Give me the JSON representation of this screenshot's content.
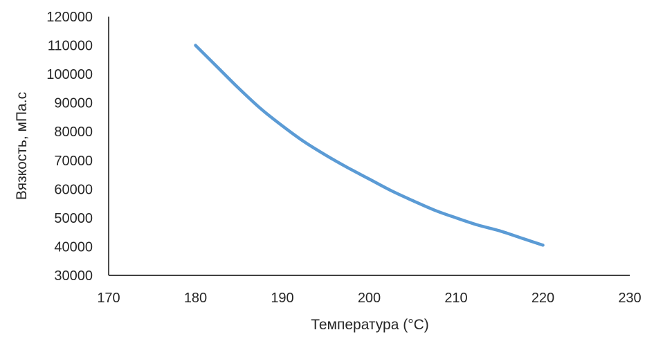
{
  "chart_data": {
    "type": "line",
    "title": "",
    "xlabel": "Температура (°C)",
    "ylabel": "Вязкость, мПа.с",
    "xlim": [
      170,
      230
    ],
    "ylim": [
      30000,
      120000
    ],
    "x_ticks": [
      170,
      180,
      190,
      200,
      210,
      220,
      230
    ],
    "y_ticks": [
      30000,
      40000,
      50000,
      60000,
      70000,
      80000,
      90000,
      100000,
      110000,
      120000
    ],
    "grid": false,
    "legend": "none",
    "series": [
      {
        "color": "#5B9BD5",
        "x": [
          180,
          182.5,
          185,
          187.5,
          190,
          192.5,
          195,
          197.5,
          200,
          202.5,
          205,
          207.5,
          210,
          212.5,
          215,
          217.5,
          220
        ],
        "y": [
          110000,
          102500,
          95000,
          88000,
          82000,
          76500,
          71800,
          67500,
          63500,
          59500,
          56000,
          52700,
          50000,
          47500,
          45500,
          43000,
          40500
        ]
      }
    ]
  }
}
